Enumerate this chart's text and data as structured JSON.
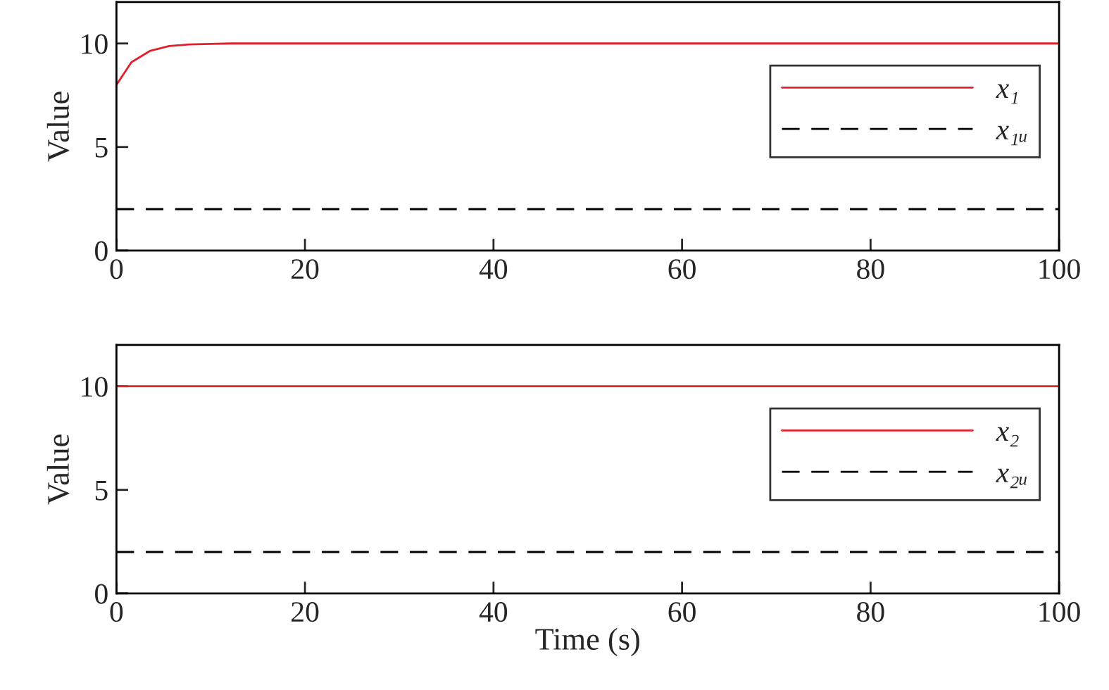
{
  "chart_data": [
    {
      "type": "line",
      "ylabel": "Value",
      "xlim": [
        0,
        100
      ],
      "ylim": [
        0,
        12
      ],
      "xticks": [
        0,
        20,
        40,
        60,
        80,
        100
      ],
      "yticks": [
        0,
        5,
        10
      ],
      "grid": false,
      "legend": "right",
      "series": [
        {
          "name": "x₁",
          "color": "#e0202a",
          "line_style": "solid",
          "x": [
            0,
            1.6,
            3.6,
            5.6,
            7.7,
            10,
            12,
            100
          ],
          "values": [
            8.0,
            9.1,
            9.65,
            9.88,
            9.95,
            9.98,
            10,
            10
          ]
        },
        {
          "name": "x₁ᵤ",
          "color": "#000000",
          "line_style": "dashed",
          "x": [
            0,
            100
          ],
          "values": [
            2,
            2
          ]
        }
      ]
    },
    {
      "type": "line",
      "ylabel": "Value",
      "xlabel": "Time (s)",
      "xlim": [
        0,
        100
      ],
      "ylim": [
        0,
        12
      ],
      "xticks": [
        0,
        20,
        40,
        60,
        80,
        100
      ],
      "yticks": [
        0,
        5,
        10
      ],
      "grid": false,
      "legend": "right",
      "series": [
        {
          "name": "x₂",
          "color": "#e0202a",
          "line_style": "solid",
          "x": [
            0,
            100
          ],
          "values": [
            10,
            10
          ]
        },
        {
          "name": "x₂ᵤ",
          "color": "#000000",
          "line_style": "dashed",
          "x": [
            0,
            100
          ],
          "values": [
            2,
            2
          ]
        }
      ]
    }
  ]
}
